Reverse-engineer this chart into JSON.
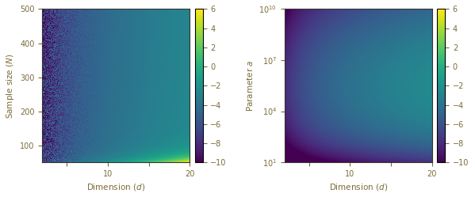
{
  "left_plot": {
    "xlabel": "Dimension ($d$)",
    "ylabel": "Sample size ($N$)",
    "d_min": 2,
    "d_max": 20,
    "N_min": 50,
    "N_max": 500,
    "yticks": [
      100,
      200,
      300,
      400,
      500
    ],
    "xticks_pos": [
      5,
      10,
      15,
      20
    ],
    "xticks_labels": [
      "",
      "10",
      "",
      "20"
    ]
  },
  "right_plot": {
    "xlabel": "Dimension ($d$)",
    "ylabel": "Parameter $a$",
    "d_min": 2,
    "d_max": 20,
    "a_min_exp": 1,
    "a_max_exp": 10,
    "xticks_pos": [
      5,
      10,
      15,
      20
    ],
    "xticks_labels": [
      "",
      "10",
      "",
      "20"
    ],
    "yticks_pos": [
      1,
      4,
      7,
      10
    ],
    "yticks_labels": [
      "$10^1$",
      "$10^4$",
      "$10^7$",
      "$10^{10}$"
    ]
  },
  "colorbar": {
    "vmin": -10,
    "vmax": 6,
    "ticks": [
      6,
      4,
      2,
      0,
      -2,
      -4,
      -6,
      -8,
      -10
    ],
    "cmap": "viridis"
  },
  "label_color": "#7B6B3A",
  "tick_color": "#7B6B3A"
}
